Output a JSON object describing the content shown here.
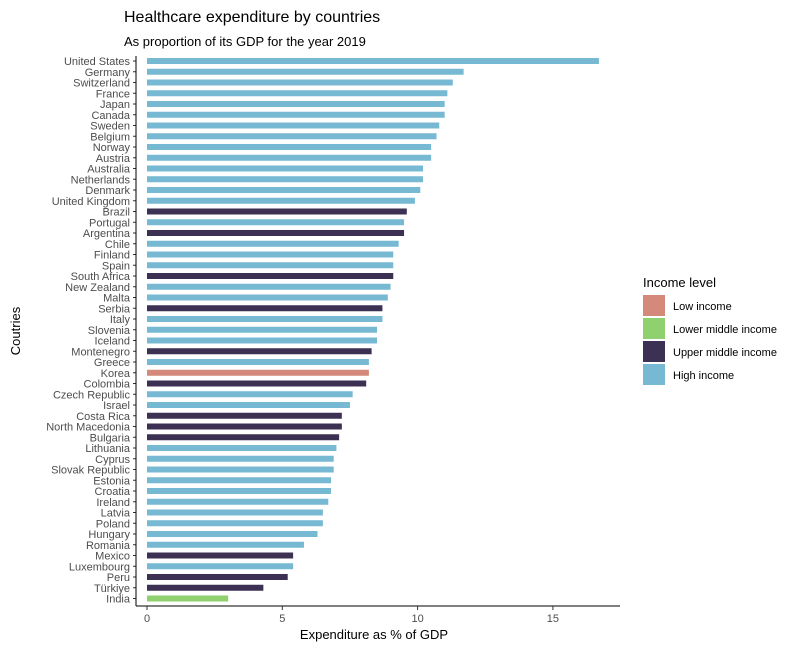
{
  "chart_data": {
    "type": "bar",
    "orientation": "horizontal",
    "title": "Healthcare expenditure by countries",
    "subtitle": "As proportion of its GDP for the year 2019",
    "xlabel": "Expenditure as % of GDP",
    "ylabel": "Coutries",
    "xlim": [
      0,
      17.5
    ],
    "xticks": [
      0,
      5,
      10,
      15
    ],
    "grid": false,
    "legend_position": "right",
    "legend": {
      "title": "Income level",
      "entries": [
        {
          "name": "Low income",
          "color": "#d4897a"
        },
        {
          "name": "Lower middle income",
          "color": "#8fd16e"
        },
        {
          "name": "Upper middle income",
          "color": "#3c3152"
        },
        {
          "name": "High income",
          "color": "#77b8d2"
        }
      ]
    },
    "categories": [
      "United States",
      "Germany",
      "Switzerland",
      "France",
      "Japan",
      "Canada",
      "Sweden",
      "Belgium",
      "Norway",
      "Austria",
      "Australia",
      "Netherlands",
      "Denmark",
      "United Kingdom",
      "Brazil",
      "Portugal",
      "Argentina",
      "Chile",
      "Finland",
      "Spain",
      "South Africa",
      "New Zealand",
      "Malta",
      "Serbia",
      "Italy",
      "Slovenia",
      "Iceland",
      "Montenegro",
      "Greece",
      "Korea",
      "Colombia",
      "Czech Republic",
      "Israel",
      "Costa Rica",
      "North Macedonia",
      "Bulgaria",
      "Lithuania",
      "Cyprus",
      "Slovak Republic",
      "Estonia",
      "Croatia",
      "Ireland",
      "Latvia",
      "Poland",
      "Hungary",
      "Romania",
      "Mexico",
      "Luxembourg",
      "Peru",
      "Türkiye",
      "India"
    ],
    "values": [
      16.7,
      11.7,
      11.3,
      11.1,
      11.0,
      11.0,
      10.8,
      10.7,
      10.5,
      10.5,
      10.2,
      10.2,
      10.1,
      9.9,
      9.6,
      9.5,
      9.5,
      9.3,
      9.1,
      9.1,
      9.1,
      9.0,
      8.9,
      8.7,
      8.7,
      8.5,
      8.5,
      8.3,
      8.2,
      8.2,
      8.1,
      7.6,
      7.5,
      7.2,
      7.2,
      7.1,
      7.0,
      6.9,
      6.9,
      6.8,
      6.8,
      6.7,
      6.5,
      6.5,
      6.3,
      5.8,
      5.4,
      5.4,
      5.2,
      4.3,
      3.0
    ],
    "income_level": [
      "High income",
      "High income",
      "High income",
      "High income",
      "High income",
      "High income",
      "High income",
      "High income",
      "High income",
      "High income",
      "High income",
      "High income",
      "High income",
      "High income",
      "Upper middle income",
      "High income",
      "Upper middle income",
      "High income",
      "High income",
      "High income",
      "Upper middle income",
      "High income",
      "High income",
      "Upper middle income",
      "High income",
      "High income",
      "High income",
      "Upper middle income",
      "High income",
      "Low income",
      "Upper middle income",
      "High income",
      "High income",
      "Upper middle income",
      "Upper middle income",
      "Upper middle income",
      "High income",
      "High income",
      "High income",
      "High income",
      "High income",
      "High income",
      "High income",
      "High income",
      "High income",
      "High income",
      "Upper middle income",
      "High income",
      "Upper middle income",
      "Upper middle income",
      "Lower middle income"
    ]
  }
}
